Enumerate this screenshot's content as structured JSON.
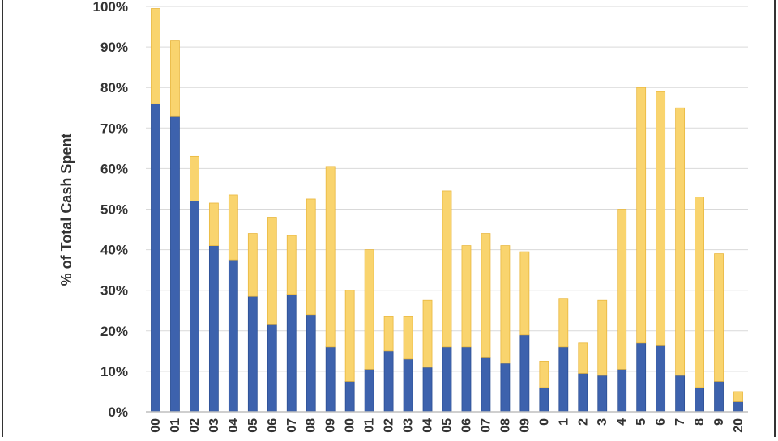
{
  "chart_data": {
    "type": "bar",
    "stacked": true,
    "ylabel": "% of Total Cash Spent",
    "ylim": [
      0,
      100
    ],
    "yticks": [
      "0%",
      "10%",
      "20%",
      "30%",
      "40%",
      "50%",
      "60%",
      "70%",
      "80%",
      "90%",
      "100%"
    ],
    "grid": true,
    "categories": [
      "00",
      "01",
      "02",
      "03",
      "04",
      "05",
      "06",
      "07",
      "08",
      "09",
      "00",
      "01",
      "02",
      "03",
      "04",
      "05",
      "06",
      "07",
      "08",
      "09",
      "0",
      "1",
      "2",
      "3",
      "4",
      "5",
      "6",
      "7",
      "8",
      "9",
      "20"
    ],
    "series": [
      {
        "color": "#3d62ad",
        "values": [
          76,
          73,
          52,
          41,
          37.5,
          28.5,
          21.5,
          29,
          24,
          16,
          7.5,
          10.5,
          15,
          13,
          11,
          16,
          16,
          13.5,
          12,
          19,
          6,
          16,
          9.5,
          9,
          10.5,
          17,
          16.5,
          9,
          6,
          7.5,
          2.5
        ]
      },
      {
        "color": "#f9d46e",
        "values": [
          23.5,
          18.5,
          11,
          10.5,
          16,
          15.5,
          26.5,
          14.5,
          28.5,
          44.5,
          22.5,
          29.5,
          8.5,
          10.5,
          16.5,
          38.5,
          25,
          30.5,
          29,
          20.5,
          6.5,
          12,
          7.5,
          18.5,
          39.5,
          63,
          62.5,
          66,
          47,
          31.5,
          2.5
        ]
      }
    ]
  }
}
